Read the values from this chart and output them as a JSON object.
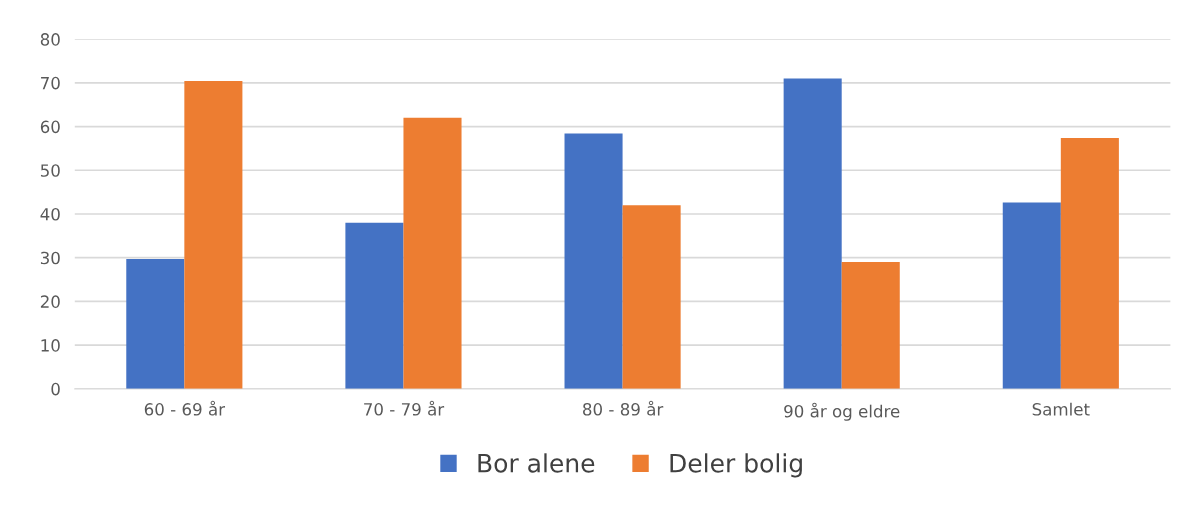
{
  "chart_data": {
    "type": "bar",
    "categories": [
      "60 - 69 år",
      "70 - 79 år",
      "80 - 89 år",
      "90 år og eldre",
      "Samlet"
    ],
    "series": [
      {
        "name": "Bor alene",
        "color": "#4472c4",
        "values": [
          29.7,
          38,
          58.4,
          71,
          42.6
        ]
      },
      {
        "name": "Deler bolig",
        "color": "#ed7d31",
        "values": [
          70.4,
          62,
          42,
          29,
          57.4
        ]
      }
    ],
    "ylim": [
      0,
      80
    ],
    "yticks": [
      0,
      10,
      20,
      30,
      40,
      50,
      60,
      70,
      80
    ],
    "grid": "y",
    "legend": "bottom"
  }
}
